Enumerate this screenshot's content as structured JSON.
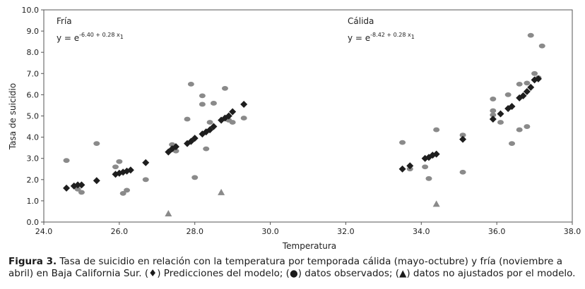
{
  "chart_data": {
    "type": "scatter",
    "xlabel": "Temperatura",
    "ylabel": "Tasa de suicidio",
    "xlim": [
      24.0,
      38.0
    ],
    "ylim": [
      0.0,
      10.0
    ],
    "x_ticks": [
      "24.0",
      "26.0",
      "28.0",
      "30.0",
      "32.0",
      "34.0",
      "36.0",
      "38.0"
    ],
    "y_ticks": [
      "0.0",
      "1.0",
      "2.0",
      "3.0",
      "4.0",
      "5.0",
      "6.0",
      "7.0",
      "8.0",
      "9.0",
      "10.0"
    ],
    "grid": false,
    "panels": [
      {
        "label": "Fría",
        "equation_base": "y = e",
        "equation_exp": "-6.40 + 0.28 x",
        "equation_sub": "1"
      },
      {
        "label": "Cálida",
        "equation_base": "y = e",
        "equation_exp": "-8.42 + 0.28 x",
        "equation_sub": "1"
      }
    ],
    "series": [
      {
        "marker": "diamond",
        "color": "#1e1e1e",
        "points": [
          [
            24.6,
            1.6
          ],
          [
            24.8,
            1.7
          ],
          [
            24.9,
            1.75
          ],
          [
            25.0,
            1.75
          ],
          [
            25.4,
            1.95
          ],
          [
            25.9,
            2.25
          ],
          [
            26.0,
            2.3
          ],
          [
            26.1,
            2.35
          ],
          [
            26.2,
            2.4
          ],
          [
            26.3,
            2.45
          ],
          [
            26.7,
            2.8
          ],
          [
            27.3,
            3.3
          ],
          [
            27.4,
            3.45
          ],
          [
            27.5,
            3.55
          ],
          [
            27.8,
            3.7
          ],
          [
            27.9,
            3.8
          ],
          [
            28.0,
            3.95
          ],
          [
            28.2,
            4.15
          ],
          [
            28.3,
            4.25
          ],
          [
            28.4,
            4.35
          ],
          [
            28.5,
            4.5
          ],
          [
            28.7,
            4.8
          ],
          [
            28.8,
            4.9
          ],
          [
            28.9,
            5.0
          ],
          [
            29.0,
            5.2
          ],
          [
            29.3,
            5.55
          ],
          [
            33.5,
            2.5
          ],
          [
            33.7,
            2.65
          ],
          [
            34.1,
            3.0
          ],
          [
            34.2,
            3.05
          ],
          [
            34.3,
            3.15
          ],
          [
            34.4,
            3.2
          ],
          [
            35.1,
            3.9
          ],
          [
            35.9,
            4.85
          ],
          [
            36.1,
            5.1
          ],
          [
            36.3,
            5.35
          ],
          [
            36.4,
            5.45
          ],
          [
            36.6,
            5.85
          ],
          [
            36.7,
            5.95
          ],
          [
            36.8,
            6.15
          ],
          [
            36.9,
            6.35
          ],
          [
            37.0,
            6.7
          ],
          [
            37.1,
            6.75
          ]
        ]
      },
      {
        "marker": "circle",
        "color": "#8a8a8a",
        "points": [
          [
            24.6,
            2.9
          ],
          [
            24.9,
            1.55
          ],
          [
            25.0,
            1.4
          ],
          [
            25.4,
            3.7
          ],
          [
            25.9,
            2.6
          ],
          [
            26.0,
            2.85
          ],
          [
            26.1,
            1.35
          ],
          [
            26.2,
            1.5
          ],
          [
            26.7,
            2.0
          ],
          [
            27.4,
            3.65
          ],
          [
            27.5,
            3.35
          ],
          [
            27.8,
            4.85
          ],
          [
            27.9,
            6.5
          ],
          [
            28.0,
            2.1
          ],
          [
            28.2,
            5.95
          ],
          [
            28.2,
            5.55
          ],
          [
            28.4,
            4.7
          ],
          [
            28.3,
            3.45
          ],
          [
            28.5,
            5.6
          ],
          [
            28.8,
            6.3
          ],
          [
            28.9,
            4.8
          ],
          [
            29.0,
            4.7
          ],
          [
            29.3,
            4.9
          ],
          [
            33.5,
            3.75
          ],
          [
            33.7,
            2.5
          ],
          [
            34.1,
            2.6
          ],
          [
            34.2,
            2.05
          ],
          [
            34.4,
            4.35
          ],
          [
            35.1,
            4.1
          ],
          [
            35.1,
            2.35
          ],
          [
            35.9,
            5.8
          ],
          [
            35.9,
            5.25
          ],
          [
            35.9,
            5.05
          ],
          [
            36.1,
            4.7
          ],
          [
            36.3,
            6.0
          ],
          [
            36.4,
            3.7
          ],
          [
            36.6,
            4.35
          ],
          [
            36.8,
            4.5
          ],
          [
            36.6,
            6.5
          ],
          [
            36.9,
            8.8
          ],
          [
            37.0,
            7.0
          ],
          [
            37.2,
            8.3
          ],
          [
            37.1,
            6.8
          ],
          [
            36.8,
            6.55
          ]
        ]
      },
      {
        "marker": "triangle",
        "color": "#8a8a8a",
        "points": [
          [
            27.3,
            0.4
          ],
          [
            28.7,
            1.4
          ],
          [
            34.4,
            0.85
          ]
        ]
      }
    ]
  },
  "caption": {
    "label": "Figura 3.",
    "text_1": " Tasa de suicidio en relación con la temperatura por temporada cálida (mayo-octubre) y fría (noviembre a abril) en Baja California Sur. (",
    "symbol_diamond": "♦",
    "text_2": ") Predicciones del modelo; (",
    "symbol_circle": "●",
    "text_3": ") datos observados; (",
    "symbol_triangle": "▲",
    "text_4": ") datos no ajustados por el modelo."
  }
}
